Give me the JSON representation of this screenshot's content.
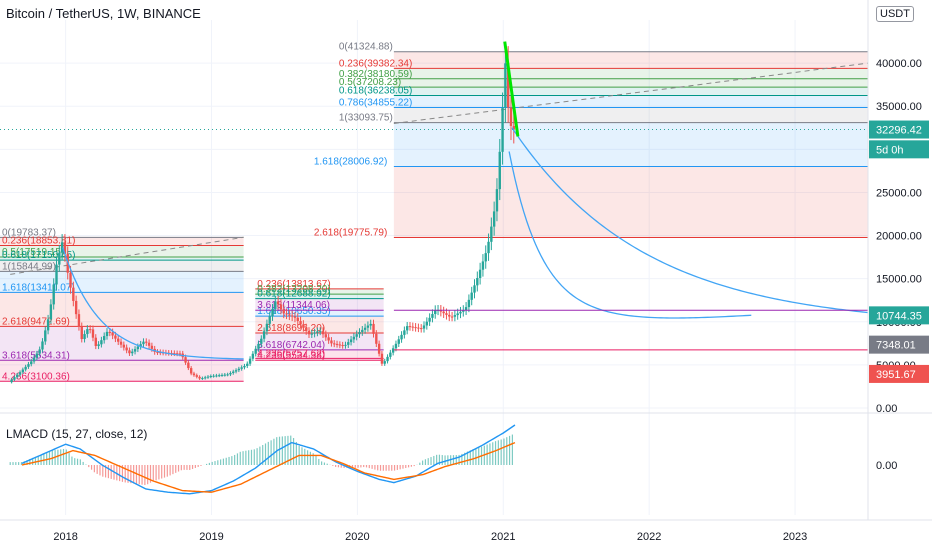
{
  "header": {
    "title": "Bitcoin / TetherUS, 1W, BINANCE",
    "currency": "USDT"
  },
  "indicator": {
    "title": "LMACD (15, 27, close, 12)",
    "zero_label": "0.00"
  },
  "colors": {
    "up": "#26a69a",
    "down": "#ef5350",
    "macd": "#2196f3",
    "signal": "#ff6d00",
    "fib_red": "#e53935",
    "fib_green": "#43a047",
    "fib_teal": "#009688",
    "fib_blue": "#2196f3",
    "fib_purple": "#9c27b0",
    "fib_pink": "#e91e63",
    "fib_gray": "#787b86",
    "curve": "#42a5f5",
    "highlight": "#00e600"
  },
  "price_labels": [
    {
      "text": "32296.42",
      "bg": "#26a69a",
      "value": 32296.42
    },
    {
      "text": "5d 0h",
      "bg": "#26a69a",
      "value": 30000
    },
    {
      "text": "10744.35",
      "bg": "#26a69a",
      "value": 10744.35
    },
    {
      "text": "7348.01",
      "bg": "#787b86",
      "value": 7348.01
    },
    {
      "text": "3951.67",
      "bg": "#ef5350",
      "value": 3951.67
    }
  ],
  "fib_sets": [
    {
      "levels": [
        {
          "text": "0(41324.88)",
          "value": 41324.88,
          "color": "#787b86"
        },
        {
          "text": "0.236(39382.34)",
          "value": 39382.34,
          "color": "#e53935"
        },
        {
          "text": "0.382(38180.59)",
          "value": 38180.59,
          "color": "#43a047"
        },
        {
          "text": "0.5(37208.23)",
          "value": 37208.23,
          "color": "#43a047"
        },
        {
          "text": "0.618(36238.05)",
          "value": 36238.05,
          "color": "#009688"
        },
        {
          "text": "0.786(34855.22)",
          "value": 34855.22,
          "color": "#2196f3"
        },
        {
          "text": "1(33093.75)",
          "value": 33093.75,
          "color": "#787b86"
        },
        {
          "text": "1.618(28006.92)",
          "value": 28006.92,
          "color": "#2196f3"
        },
        {
          "text": "2.618(19775.79)",
          "value": 19775.79,
          "color": "#e53935"
        }
      ]
    },
    {
      "levels": [
        {
          "text": "0(19783.37)",
          "value": 19783.37,
          "color": "#787b86"
        },
        {
          "text": "0.236(18853.81)",
          "value": 18853.81,
          "color": "#e53935"
        },
        {
          "text": "0.5(17519.15)",
          "value": 17519.15,
          "color": "#43a047"
        },
        {
          "text": "0.618(17150.45)",
          "value": 17150.45,
          "color": "#009688"
        },
        {
          "text": "1(15844.99)",
          "value": 15844.99,
          "color": "#787b86"
        },
        {
          "text": "1.618(13411.07)",
          "value": 13411.07,
          "color": "#2196f3"
        },
        {
          "text": "2.618(9472.69)",
          "value": 9472.69,
          "color": "#e53935"
        },
        {
          "text": "3.618(5534.31)",
          "value": 5534.31,
          "color": "#9c27b0"
        },
        {
          "text": "4.236(3100.36)",
          "value": 3100.36,
          "color": "#e91e63"
        }
      ]
    },
    {
      "levels": [
        {
          "text": "0.236(13813.67)",
          "value": 13813.67,
          "color": "#e53935"
        },
        {
          "text": "0.382(13208.20)",
          "value": 13208.2,
          "color": "#43a047"
        },
        {
          "text": "0.618(12688.92)",
          "value": 12688.92,
          "color": "#009688"
        },
        {
          "text": "1.618(10650.35)",
          "value": 10650.35,
          "color": "#2196f3"
        },
        {
          "text": "2.618(8696.20)",
          "value": 8696.2,
          "color": "#e53935"
        },
        {
          "text": "3.618(6742.04)",
          "value": 6742.04,
          "color": "#9c27b0"
        },
        {
          "text": "4.236(5534.38)",
          "value": 5534.38,
          "color": "#e91e63"
        },
        {
          "text": "3.618(11344.06)",
          "value": 11344.06,
          "color": "#9c27b0"
        },
        {
          "text": "4.236(5757.62)",
          "value": 5757.62,
          "color": "#e91e63"
        }
      ]
    }
  ],
  "chart_data": {
    "type": "candlestick",
    "title": "Bitcoin / TetherUS, 1W, BINANCE",
    "xlabel": "",
    "ylabel": "",
    "y_axis": {
      "min": 0,
      "max": 45000,
      "ticks": [
        0,
        5000,
        10000,
        15000,
        20000,
        25000,
        30000,
        35000,
        40000
      ],
      "tick_labels": [
        "0.00",
        "5000.00",
        "10000.00",
        "15000.00",
        "20000.00",
        "25000.00",
        "30000.00",
        "35000.00",
        "40000.00"
      ]
    },
    "x_axis": {
      "start": 2017.55,
      "end": 2023.5,
      "ticks": [
        2018,
        2019,
        2020,
        2021,
        2022,
        2023
      ],
      "tick_labels": [
        "2018",
        "2019",
        "2020",
        "2021",
        "2022",
        "2023"
      ]
    },
    "price_anchors": [
      [
        2017.62,
        3000
      ],
      [
        2017.7,
        4200
      ],
      [
        2017.78,
        5500
      ],
      [
        2017.84,
        7000
      ],
      [
        2017.9,
        11000
      ],
      [
        2017.95,
        17000
      ],
      [
        2017.99,
        19500
      ],
      [
        2018.03,
        15000
      ],
      [
        2018.08,
        11000
      ],
      [
        2018.12,
        8000
      ],
      [
        2018.17,
        9500
      ],
      [
        2018.22,
        7000
      ],
      [
        2018.3,
        9000
      ],
      [
        2018.38,
        7500
      ],
      [
        2018.45,
        6300
      ],
      [
        2018.55,
        7800
      ],
      [
        2018.62,
        6500
      ],
      [
        2018.7,
        6400
      ],
      [
        2018.8,
        6300
      ],
      [
        2018.87,
        4000
      ],
      [
        2018.93,
        3400
      ],
      [
        2019.0,
        3700
      ],
      [
        2019.12,
        3900
      ],
      [
        2019.25,
        5000
      ],
      [
        2019.35,
        8000
      ],
      [
        2019.45,
        12500
      ],
      [
        2019.5,
        11000
      ],
      [
        2019.58,
        10500
      ],
      [
        2019.68,
        8500
      ],
      [
        2019.75,
        9000
      ],
      [
        2019.83,
        7500
      ],
      [
        2019.92,
        7200
      ],
      [
        2020.0,
        8500
      ],
      [
        2020.1,
        9800
      ],
      [
        2020.18,
        5000
      ],
      [
        2020.25,
        6800
      ],
      [
        2020.35,
        9500
      ],
      [
        2020.45,
        9200
      ],
      [
        2020.55,
        11500
      ],
      [
        2020.65,
        10500
      ],
      [
        2020.75,
        11500
      ],
      [
        2020.83,
        15000
      ],
      [
        2020.9,
        18500
      ],
      [
        2020.96,
        24000
      ],
      [
        2021.0,
        33000
      ],
      [
        2021.02,
        41000
      ],
      [
        2021.05,
        33000
      ],
      [
        2021.08,
        32296
      ]
    ],
    "macd_anchors": [
      [
        2017.7,
        0.1
      ],
      [
        2017.9,
        0.9
      ],
      [
        2018.0,
        1.3
      ],
      [
        2018.1,
        1.0
      ],
      [
        2018.25,
        0.0
      ],
      [
        2018.4,
        -0.8
      ],
      [
        2018.55,
        -1.5
      ],
      [
        2018.7,
        -1.7
      ],
      [
        2018.85,
        -1.8
      ],
      [
        2019.0,
        -1.6
      ],
      [
        2019.15,
        -1.0
      ],
      [
        2019.3,
        -0.2
      ],
      [
        2019.45,
        0.9
      ],
      [
        2019.55,
        1.4
      ],
      [
        2019.7,
        1.0
      ],
      [
        2019.85,
        0.2
      ],
      [
        2020.0,
        -0.4
      ],
      [
        2020.15,
        -0.9
      ],
      [
        2020.25,
        -1.1
      ],
      [
        2020.4,
        -0.7
      ],
      [
        2020.55,
        0.1
      ],
      [
        2020.7,
        0.5
      ],
      [
        2020.85,
        1.2
      ],
      [
        2021.0,
        2.0
      ],
      [
        2021.08,
        2.5
      ]
    ],
    "signal_anchors": [
      [
        2017.7,
        0.0
      ],
      [
        2017.9,
        0.4
      ],
      [
        2018.05,
        0.9
      ],
      [
        2018.2,
        0.6
      ],
      [
        2018.4,
        -0.2
      ],
      [
        2018.6,
        -1.0
      ],
      [
        2018.8,
        -1.6
      ],
      [
        2019.0,
        -1.7
      ],
      [
        2019.2,
        -1.2
      ],
      [
        2019.4,
        -0.3
      ],
      [
        2019.6,
        0.6
      ],
      [
        2019.75,
        0.6
      ],
      [
        2019.9,
        0.1
      ],
      [
        2020.05,
        -0.5
      ],
      [
        2020.25,
        -0.9
      ],
      [
        2020.45,
        -0.6
      ],
      [
        2020.6,
        -0.1
      ],
      [
        2020.8,
        0.4
      ],
      [
        2020.95,
        0.9
      ],
      [
        2021.08,
        1.4
      ]
    ]
  }
}
